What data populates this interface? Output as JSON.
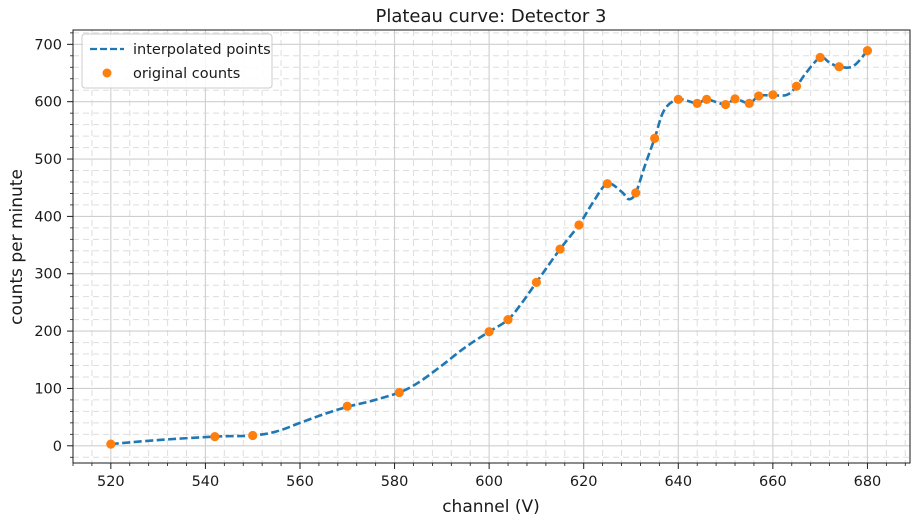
{
  "chart_data": {
    "type": "line",
    "title": "Plateau curve: Detector 3",
    "xlabel": "channel (V)",
    "ylabel": "counts per minute",
    "xlim": [
      512,
      689
    ],
    "ylim": [
      -30,
      725
    ],
    "x_ticks": [
      520,
      540,
      560,
      580,
      600,
      620,
      640,
      660,
      680
    ],
    "y_ticks": [
      0,
      100,
      200,
      300,
      400,
      500,
      600,
      700
    ],
    "grid": true,
    "minor_grid": true,
    "legend": "upper-left",
    "series": [
      {
        "name": "interpolated points",
        "style": "dashed-line",
        "color": "#1f77b4",
        "x": [
          520,
          530,
          542,
          550,
          555,
          560,
          565,
          570,
          575,
          581,
          585,
          590,
          595,
          600,
          604,
          607,
          610,
          615,
          619,
          622,
          625,
          628,
          629.5,
          631,
          633,
          635,
          637,
          640,
          644,
          646,
          650,
          652,
          655,
          657,
          660,
          663,
          665,
          667,
          670,
          672,
          674,
          677,
          680
        ],
        "y": [
          3,
          10,
          16,
          18,
          25,
          40,
          55,
          68,
          78,
          93,
          110,
          140,
          172,
          199,
          220,
          250,
          285,
          343,
          385,
          425,
          457,
          443,
          430,
          441,
          490,
          536,
          585,
          604,
          597,
          604,
          595,
          605,
          597,
          610,
          611,
          612,
          627,
          650,
          677,
          668,
          661,
          662,
          689
        ]
      },
      {
        "name": "original counts",
        "style": "markers",
        "color": "#ff7f0e",
        "x": [
          520,
          542,
          550,
          570,
          581,
          600,
          604,
          610,
          615,
          619,
          625,
          631,
          635,
          640,
          644,
          646,
          650,
          652,
          655,
          657,
          660,
          665,
          670,
          674,
          680
        ],
        "y": [
          3,
          16,
          18,
          69,
          93,
          199,
          220,
          285,
          343,
          385,
          457,
          441,
          536,
          604,
          597,
          604,
          595,
          605,
          597,
          610,
          612,
          627,
          677,
          661,
          689
        ]
      }
    ]
  }
}
